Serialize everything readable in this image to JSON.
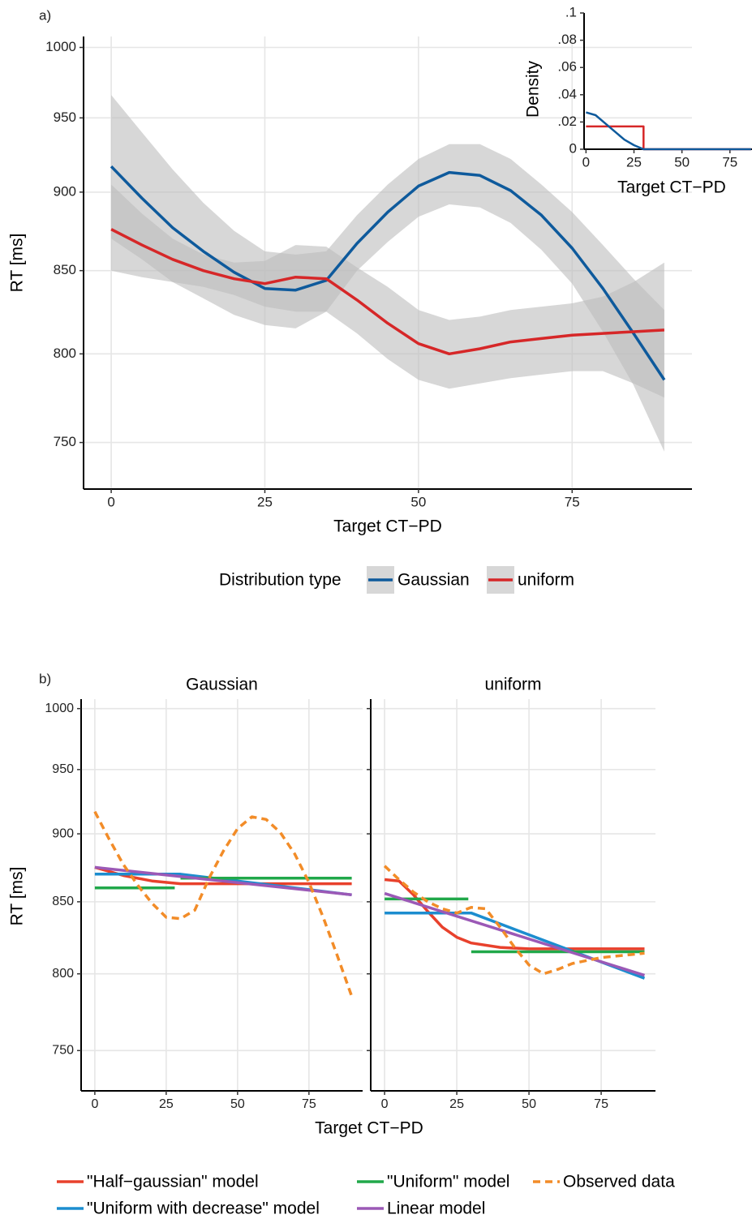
{
  "chart_data": [
    {
      "type": "line",
      "label": "a)",
      "xlabel": "Target CT−PD",
      "ylabel": "RT [ms]",
      "x": [
        0,
        5,
        10,
        15,
        20,
        25,
        30,
        35,
        40,
        45,
        50,
        55,
        60,
        65,
        70,
        75,
        80,
        85,
        90
      ],
      "xlim": [
        -4.5,
        94.5
      ],
      "ylim": [
        725,
        1008
      ],
      "log_y": true,
      "xticks": [
        0,
        25,
        50,
        75
      ],
      "yticks": [
        750,
        800,
        850,
        900,
        950,
        1000
      ],
      "grid": true,
      "legend_title": "Distribution type",
      "legend_position": "bottom",
      "band_color": "#bdbdbd",
      "series": [
        {
          "name": "Gaussian",
          "color": "#0e5a9c",
          "values": [
            917,
            896,
            877,
            862,
            849,
            839,
            838,
            844,
            867,
            887,
            904,
            913,
            911,
            901,
            885,
            864,
            839,
            812,
            785
          ],
          "upper": [
            966,
            940,
            915,
            893,
            875,
            862,
            860,
            862,
            885,
            905,
            922,
            932,
            932,
            922,
            905,
            887,
            866,
            845,
            826
          ],
          "lower": [
            870,
            857,
            843,
            833,
            823,
            817,
            815,
            825,
            850,
            868,
            884,
            892,
            890,
            880,
            863,
            842,
            813,
            782,
            745
          ]
        },
        {
          "name": "uniform",
          "color": "#d62728",
          "values": [
            876,
            866,
            857,
            850,
            845,
            842,
            846,
            845,
            832,
            818,
            806,
            800,
            803,
            807,
            809,
            811,
            812,
            813,
            814
          ],
          "upper": [
            905,
            886,
            870,
            860,
            855,
            856,
            866,
            865,
            852,
            840,
            826,
            820,
            822,
            826,
            828,
            830,
            834,
            843,
            855
          ],
          "lower": [
            850,
            846,
            843,
            840,
            835,
            828,
            825,
            825,
            812,
            797,
            785,
            780,
            783,
            786,
            788,
            790,
            790,
            783,
            775
          ]
        }
      ]
    },
    {
      "type": "line",
      "xlabel": "Target CT−PD",
      "ylabel": "Density",
      "xlim": [
        -1,
        86.5
      ],
      "ylim": [
        0,
        0.1
      ],
      "xticks": [
        0,
        25,
        50,
        75
      ],
      "yticks": [
        0,
        {
          "value": 0.02,
          "label": ".02"
        },
        {
          "value": 0.04,
          "label": ".04"
        },
        {
          "value": 0.06,
          "label": ".06"
        },
        {
          "value": 0.08,
          "label": ".08"
        },
        {
          "value": 0.1,
          "label": ".1"
        }
      ],
      "series": [
        {
          "color": "#d62728",
          "x": [
            0,
            30,
            30,
            86
          ],
          "values": [
            0.0167,
            0.0167,
            0,
            0
          ]
        },
        {
          "color": "#0e5a9c",
          "x": [
            0,
            5,
            10,
            15,
            20,
            25,
            30,
            86
          ],
          "values": [
            0.027,
            0.025,
            0.019,
            0.013,
            0.007,
            0.003,
            0,
            0
          ]
        }
      ]
    },
    {
      "type": "line",
      "label": "b)",
      "xlabel": "Target CT−PD",
      "ylabel": "RT [ms]",
      "facets": [
        "Gaussian",
        "uniform"
      ],
      "xlim": [
        -4.8,
        93.8
      ],
      "ylim": [
        725,
        1008
      ],
      "log_y": true,
      "xticks": [
        0,
        25,
        50,
        75
      ],
      "yticks": [
        750,
        800,
        850,
        900,
        950,
        1000
      ],
      "grid": true,
      "legend_position": "bottom",
      "series": [
        {
          "name": "\"Half−gaussian\" model",
          "color": "#e8412c",
          "dash": false,
          "data": [
            {
              "x": [
                0,
                10,
                20,
                30,
                45,
                60,
                75,
                90
              ],
              "values": [
                875,
                869,
                865,
                863,
                863,
                863,
                863,
                863
              ]
            },
            {
              "x": [
                0,
                5,
                10,
                15,
                20,
                25,
                30,
                40,
                50,
                60,
                90
              ],
              "values": [
                866,
                865,
                855,
                843,
                832,
                825,
                821,
                818,
                817,
                817,
                817
              ]
            }
          ]
        },
        {
          "name": "\"Uniform with decrease\" model",
          "color": "#1c8dcf",
          "dash": false,
          "data": [
            {
              "x": [
                0,
                30,
                90
              ],
              "values": [
                870,
                870,
                855
              ]
            },
            {
              "x": [
                0,
                30,
                90
              ],
              "values": [
                842,
                842,
                797
              ]
            }
          ]
        },
        {
          "name": "\"Uniform\" model",
          "color": "#21a84a",
          "dash": false,
          "data": [
            {
              "x": [
                0,
                28,
                null,
                30,
                90
              ],
              "values": [
                860,
                860,
                null,
                867,
                867
              ]
            },
            {
              "x": [
                0,
                29,
                null,
                30,
                90
              ],
              "values": [
                852,
                852,
                null,
                815,
                815
              ]
            }
          ]
        },
        {
          "name": "Linear model",
          "color": "#9b59b6",
          "dash": false,
          "data": [
            {
              "x": [
                0,
                90
              ],
              "values": [
                875,
                855
              ]
            },
            {
              "x": [
                0,
                90
              ],
              "values": [
                856,
                799
              ]
            }
          ]
        },
        {
          "name": "Observed data",
          "color": "#f28c28",
          "dash": true,
          "data": [
            {
              "x": [
                0,
                5,
                10,
                15,
                20,
                25,
                30,
                35,
                40,
                45,
                50,
                55,
                60,
                65,
                70,
                75,
                80,
                85,
                90
              ],
              "values": [
                917,
                896,
                877,
                862,
                849,
                839,
                838,
                844,
                867,
                887,
                904,
                913,
                911,
                901,
                885,
                864,
                839,
                812,
                785
              ]
            },
            {
              "x": [
                0,
                5,
                10,
                15,
                20,
                25,
                30,
                35,
                40,
                45,
                50,
                55,
                60,
                65,
                70,
                75,
                80,
                85,
                90
              ],
              "values": [
                876,
                866,
                857,
                850,
                845,
                842,
                846,
                845,
                832,
                818,
                806,
                800,
                803,
                807,
                809,
                811,
                812,
                813,
                814
              ]
            }
          ]
        }
      ]
    }
  ]
}
